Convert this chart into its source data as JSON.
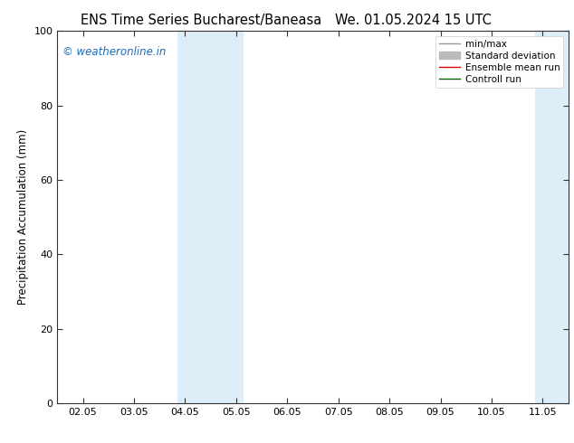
{
  "title_left": "ENS Time Series Bucharest/Baneasa",
  "title_right": "We. 01.05.2024 15 UTC",
  "ylabel": "Precipitation Accumulation (mm)",
  "ylim": [
    0,
    100
  ],
  "yticks": [
    0,
    20,
    40,
    60,
    80,
    100
  ],
  "x_tick_labels": [
    "02.05",
    "03.05",
    "04.05",
    "05.05",
    "06.05",
    "07.05",
    "08.05",
    "09.05",
    "10.05",
    "11.05"
  ],
  "x_tick_positions": [
    0,
    1,
    2,
    3,
    4,
    5,
    6,
    7,
    8,
    9
  ],
  "xlim": [
    -0.5,
    9.5
  ],
  "shaded_regions": [
    {
      "x_start": 1.85,
      "x_end": 2.5,
      "color": "#ddeef8"
    },
    {
      "x_start": 2.5,
      "x_end": 3.15,
      "color": "#ddeef8"
    },
    {
      "x_start": 8.85,
      "x_end": 9.25,
      "color": "#ddeef8"
    },
    {
      "x_start": 9.25,
      "x_end": 9.65,
      "color": "#ddeef8"
    }
  ],
  "watermark_text": "© weatheronline.in",
  "watermark_color": "#1a6bbf",
  "watermark_fontsize": 8.5,
  "legend_entries": [
    {
      "label": "min/max",
      "color": "#999999",
      "linewidth": 1.0,
      "linestyle": "-",
      "thick": false
    },
    {
      "label": "Standard deviation",
      "color": "#bbbbbb",
      "linewidth": 5,
      "linestyle": "-",
      "thick": true
    },
    {
      "label": "Ensemble mean run",
      "color": "#dd0000",
      "linewidth": 1.0,
      "linestyle": "-",
      "thick": false
    },
    {
      "label": "Controll run",
      "color": "#006600",
      "linewidth": 1.0,
      "linestyle": "-",
      "thick": false
    }
  ],
  "background_color": "#ffffff",
  "title_font_size": 10.5,
  "axis_font_size": 8.5,
  "tick_font_size": 8.0
}
